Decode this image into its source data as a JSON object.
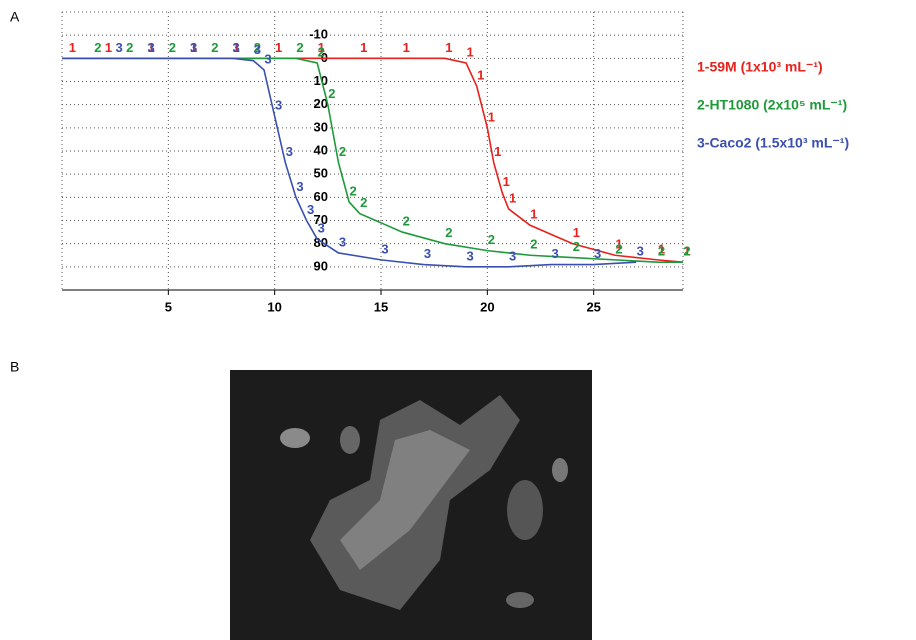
{
  "panel_a": "A",
  "panel_b": "B",
  "chart_data": {
    "type": "line",
    "xlim": [
      0,
      29.2
    ],
    "ylim": [
      100,
      -20
    ],
    "xticks": [
      5,
      10,
      15,
      20,
      25
    ],
    "yticks": [
      -10,
      0,
      10,
      20,
      30,
      40,
      50,
      60,
      70,
      80,
      90
    ],
    "grid": true,
    "series": [
      {
        "name": "1-59M (1x10³ mL⁻¹)",
        "color": "#e8211c",
        "marker": "1",
        "x": [
          0,
          0.3,
          2,
          4,
          6,
          8,
          10,
          12,
          14,
          16,
          18,
          19,
          19.5,
          20,
          20.3,
          20.7,
          21,
          22,
          24,
          26,
          28,
          29.2
        ],
        "values": [
          0,
          0,
          0,
          0,
          0,
          0,
          0,
          0,
          0,
          0,
          0,
          2,
          12,
          30,
          45,
          58,
          65,
          72,
          80,
          85,
          87,
          88
        ]
      },
      {
        "name": "2-HT1080 (2x10⁵ mL⁻¹)",
        "color": "#1e9a3a",
        "marker": "2",
        "x": [
          0,
          1.5,
          3,
          5,
          7,
          9,
          11,
          12,
          12.5,
          13,
          13.5,
          14,
          16,
          18,
          20,
          22,
          24,
          26,
          28,
          29.2
        ],
        "values": [
          0,
          0,
          0,
          0,
          0,
          0,
          0,
          2,
          20,
          45,
          62,
          67,
          75,
          80,
          83,
          85,
          86,
          87,
          88,
          88
        ]
      },
      {
        "name": "3-Caco2 (1.5x10³ mL⁻¹)",
        "color": "#3a4fb0",
        "marker": "3",
        "x": [
          0,
          2.5,
          4,
          6,
          8,
          9,
          9.5,
          10,
          10.5,
          11,
          11.5,
          12,
          13,
          15,
          17,
          19,
          21,
          23,
          25,
          27
        ],
        "values": [
          0,
          0,
          0,
          0,
          0,
          1,
          5,
          25,
          45,
          60,
          70,
          78,
          84,
          87,
          89,
          90,
          90,
          89,
          89,
          88
        ]
      }
    ]
  }
}
